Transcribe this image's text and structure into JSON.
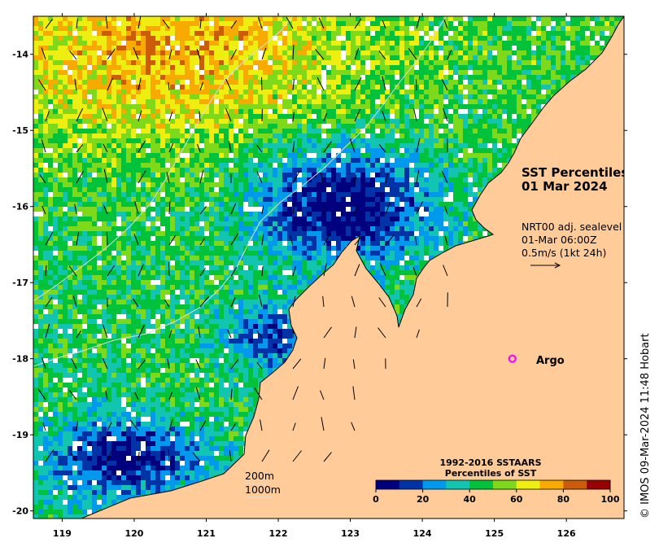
{
  "map": {
    "lat_ticks": [
      "-14",
      "-15",
      "-16",
      "-17",
      "-18",
      "-19",
      "-20"
    ],
    "lon_ticks": [
      "119",
      "120",
      "121",
      "122",
      "123",
      "124",
      "125",
      "126"
    ],
    "lon_range": [
      118.6,
      126.8
    ],
    "lat_range": [
      -20.1,
      -13.5
    ]
  },
  "title": {
    "line1": "SST Percentiles",
    "line2": "01 Mar 2024"
  },
  "current_info": {
    "line1": "NRT00 adj. sealevel",
    "line2": "01-Mar 06:00Z",
    "line3": "0.5m/s (1kt 24h)"
  },
  "argo": {
    "label": "Argo",
    "color": "#ff00ff",
    "lon": 125.25,
    "lat": -18.0
  },
  "isobaths": {
    "label_200m": "200m",
    "label_1000m": "1000m"
  },
  "colorbar": {
    "title_line1": "1992-2016 SSTAARS",
    "title_line2": "Percentiles of SST",
    "tick_labels": [
      "0",
      "20",
      "40",
      "60",
      "80",
      "100"
    ],
    "colors": [
      "#00007f",
      "#0033a8",
      "#0099ee",
      "#11c5b0",
      "#00c23b",
      "#7fd91b",
      "#eeee11",
      "#f9aa00",
      "#cc5c0a",
      "#990000"
    ]
  },
  "credit": "© IMOS 09-Mar-2024 11:48 Hobart",
  "colors": {
    "land": "#ffcc99",
    "coast": "#000000",
    "isobath": "#dddddd"
  }
}
